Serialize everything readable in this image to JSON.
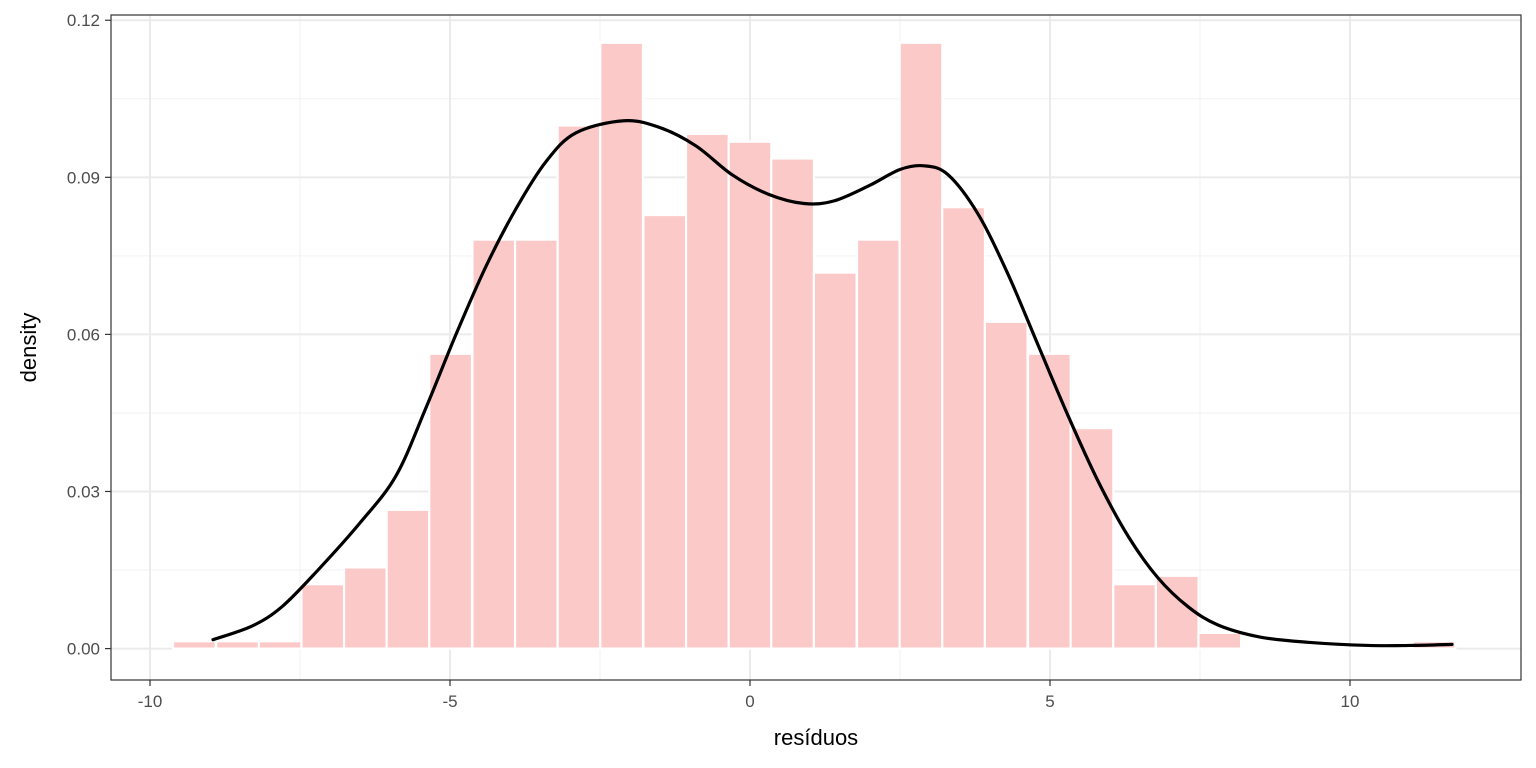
{
  "chart_data": {
    "type": "bar",
    "overlay": "density-line",
    "xlabel": "resíduos",
    "ylabel": "density",
    "xlim": [
      -10.65,
      12.85
    ],
    "ylim": [
      -0.006,
      0.121
    ],
    "x_ticks": [
      -10,
      -5,
      0,
      5,
      10
    ],
    "x_tick_labels": [
      "-10",
      "-5",
      "0",
      "5",
      "10"
    ],
    "y_ticks": [
      0,
      0.03,
      0.06,
      0.09,
      0.12
    ],
    "y_tick_labels": [
      "0.00",
      "0.03",
      "0.06",
      "0.09",
      "0.12"
    ],
    "grid": true,
    "bin_width": 0.712,
    "bins": [
      {
        "center": -9.26,
        "value": 0.0014
      },
      {
        "center": -8.54,
        "value": 0.0014
      },
      {
        "center": -7.83,
        "value": 0.0014
      },
      {
        "center": -7.12,
        "value": 0.0123
      },
      {
        "center": -6.41,
        "value": 0.0155
      },
      {
        "center": -5.7,
        "value": 0.0265
      },
      {
        "center": -4.99,
        "value": 0.0563
      },
      {
        "center": -4.27,
        "value": 0.0781
      },
      {
        "center": -3.56,
        "value": 0.0781
      },
      {
        "center": -2.85,
        "value": 0.0999
      },
      {
        "center": -2.14,
        "value": 0.1157
      },
      {
        "center": -1.42,
        "value": 0.0828
      },
      {
        "center": -0.71,
        "value": 0.0983
      },
      {
        "center": 0.0,
        "value": 0.0968
      },
      {
        "center": 0.71,
        "value": 0.0936
      },
      {
        "center": 1.42,
        "value": 0.0718
      },
      {
        "center": 2.14,
        "value": 0.0781
      },
      {
        "center": 2.85,
        "value": 0.1157
      },
      {
        "center": 3.56,
        "value": 0.0843
      },
      {
        "center": 4.27,
        "value": 0.0624
      },
      {
        "center": 4.99,
        "value": 0.0563
      },
      {
        "center": 5.7,
        "value": 0.0421
      },
      {
        "center": 6.41,
        "value": 0.0123
      },
      {
        "center": 7.12,
        "value": 0.0139
      },
      {
        "center": 7.83,
        "value": 0.003
      },
      {
        "center": 8.54,
        "value": 0.0
      },
      {
        "center": 9.26,
        "value": 0.0
      },
      {
        "center": 9.97,
        "value": 0.0
      },
      {
        "center": 10.68,
        "value": 0.0
      },
      {
        "center": 11.4,
        "value": 0.0014
      }
    ],
    "density_curve": [
      [
        -8.95,
        0.0017
      ],
      [
        -8.3,
        0.0043
      ],
      [
        -7.8,
        0.008
      ],
      [
        -7.2,
        0.015
      ],
      [
        -6.5,
        0.024
      ],
      [
        -5.9,
        0.033
      ],
      [
        -5.4,
        0.046
      ],
      [
        -4.9,
        0.06
      ],
      [
        -4.4,
        0.073
      ],
      [
        -3.9,
        0.084
      ],
      [
        -3.4,
        0.093
      ],
      [
        -2.9,
        0.0985
      ],
      [
        -2.1,
        0.1008
      ],
      [
        -1.5,
        0.0995
      ],
      [
        -0.9,
        0.096
      ],
      [
        -0.3,
        0.0905
      ],
      [
        0.3,
        0.0868
      ],
      [
        0.9,
        0.085
      ],
      [
        1.4,
        0.0855
      ],
      [
        2.0,
        0.0885
      ],
      [
        2.5,
        0.0915
      ],
      [
        2.9,
        0.0922
      ],
      [
        3.3,
        0.0905
      ],
      [
        3.8,
        0.083
      ],
      [
        4.3,
        0.0715
      ],
      [
        4.8,
        0.058
      ],
      [
        5.3,
        0.0445
      ],
      [
        5.8,
        0.032
      ],
      [
        6.3,
        0.0215
      ],
      [
        6.8,
        0.0135
      ],
      [
        7.3,
        0.008
      ],
      [
        7.8,
        0.0045
      ],
      [
        8.5,
        0.0022
      ],
      [
        9.3,
        0.0012
      ],
      [
        10.3,
        0.0006
      ],
      [
        11.0,
        0.0006
      ],
      [
        11.7,
        0.0008
      ]
    ],
    "bar_color": "#fcc9c9",
    "line_color": "#000000"
  }
}
